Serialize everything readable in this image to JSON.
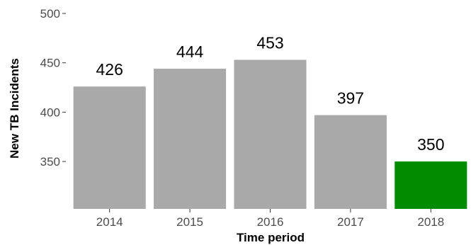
{
  "chart_data": {
    "type": "bar",
    "xlabel": "Time period",
    "ylabel": "New TB Incidents",
    "categories": [
      "2014",
      "2015",
      "2016",
      "2017",
      "2018"
    ],
    "values": [
      426,
      444,
      453,
      397,
      350
    ],
    "data_labels": [
      "426",
      "444",
      "453",
      "397",
      "350"
    ],
    "ylim": [
      302,
      500
    ],
    "yticks": [
      350,
      400,
      450,
      500
    ],
    "ytick_labels": [
      "350",
      "400",
      "450",
      "500"
    ],
    "grid": false,
    "legend": "none",
    "colors": {
      "default_bar": "#a9a9a9",
      "highlight_bar": "#008b00"
    },
    "highlight_index": 4
  }
}
